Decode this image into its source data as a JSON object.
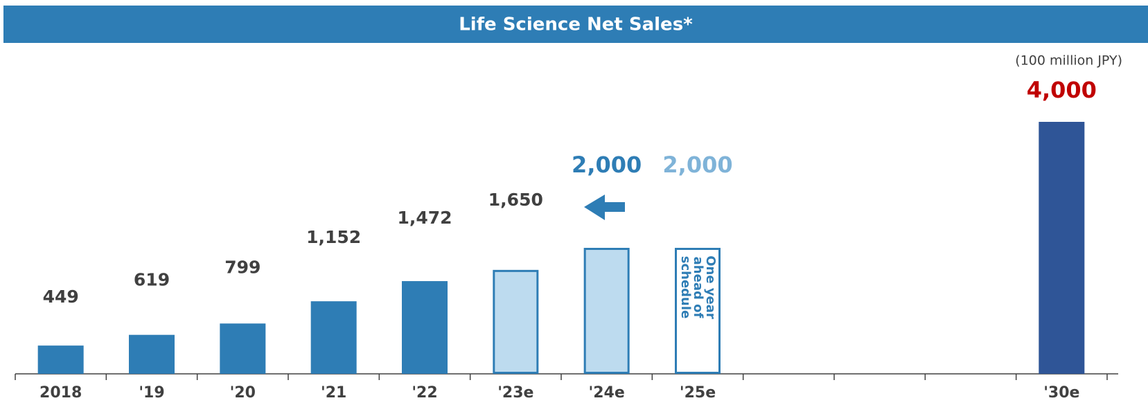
{
  "chart_data": {
    "type": "bar",
    "title": "Life Science Net Sales*",
    "unit_label": "(100 million  JPY)",
    "categories": [
      "2018",
      "'19",
      "'20",
      "'21",
      "'22",
      "'23e",
      "'24e",
      "'25e",
      null,
      null,
      null,
      "'30e"
    ],
    "values": [
      449,
      619,
      799,
      1152,
      1472,
      1650,
      2000,
      2000,
      null,
      null,
      null,
      4000
    ],
    "value_labels": [
      "449",
      "619",
      "799",
      "1,152",
      "1,472",
      "1,650",
      "2,000",
      "2,000",
      null,
      null,
      null,
      "4,000"
    ],
    "colors": [
      "#2e7db5",
      "#2e7db5",
      "#2e7db5",
      "#2e7db5",
      "#2e7db5",
      "#bddbef",
      "#bddbef",
      "#ffffff",
      null,
      null,
      null,
      "#2f5597"
    ],
    "edge_colors": [
      "#2e7db5",
      "#2e7db5",
      "#2e7db5",
      "#2e7db5",
      "#2e7db5",
      "#2e7db5",
      "#2e7db5",
      "#2e7db5",
      null,
      null,
      null,
      "#2f5597"
    ],
    "label_colors": [
      "#404040",
      "#404040",
      "#404040",
      "#404040",
      "#404040",
      "#404040",
      "#2e7db5",
      "#7fb3d8",
      null,
      null,
      null,
      "#c00000"
    ],
    "annotation": [
      "One year",
      "ahead of",
      "schedule"
    ],
    "ylim": [
      0,
      4000
    ]
  }
}
